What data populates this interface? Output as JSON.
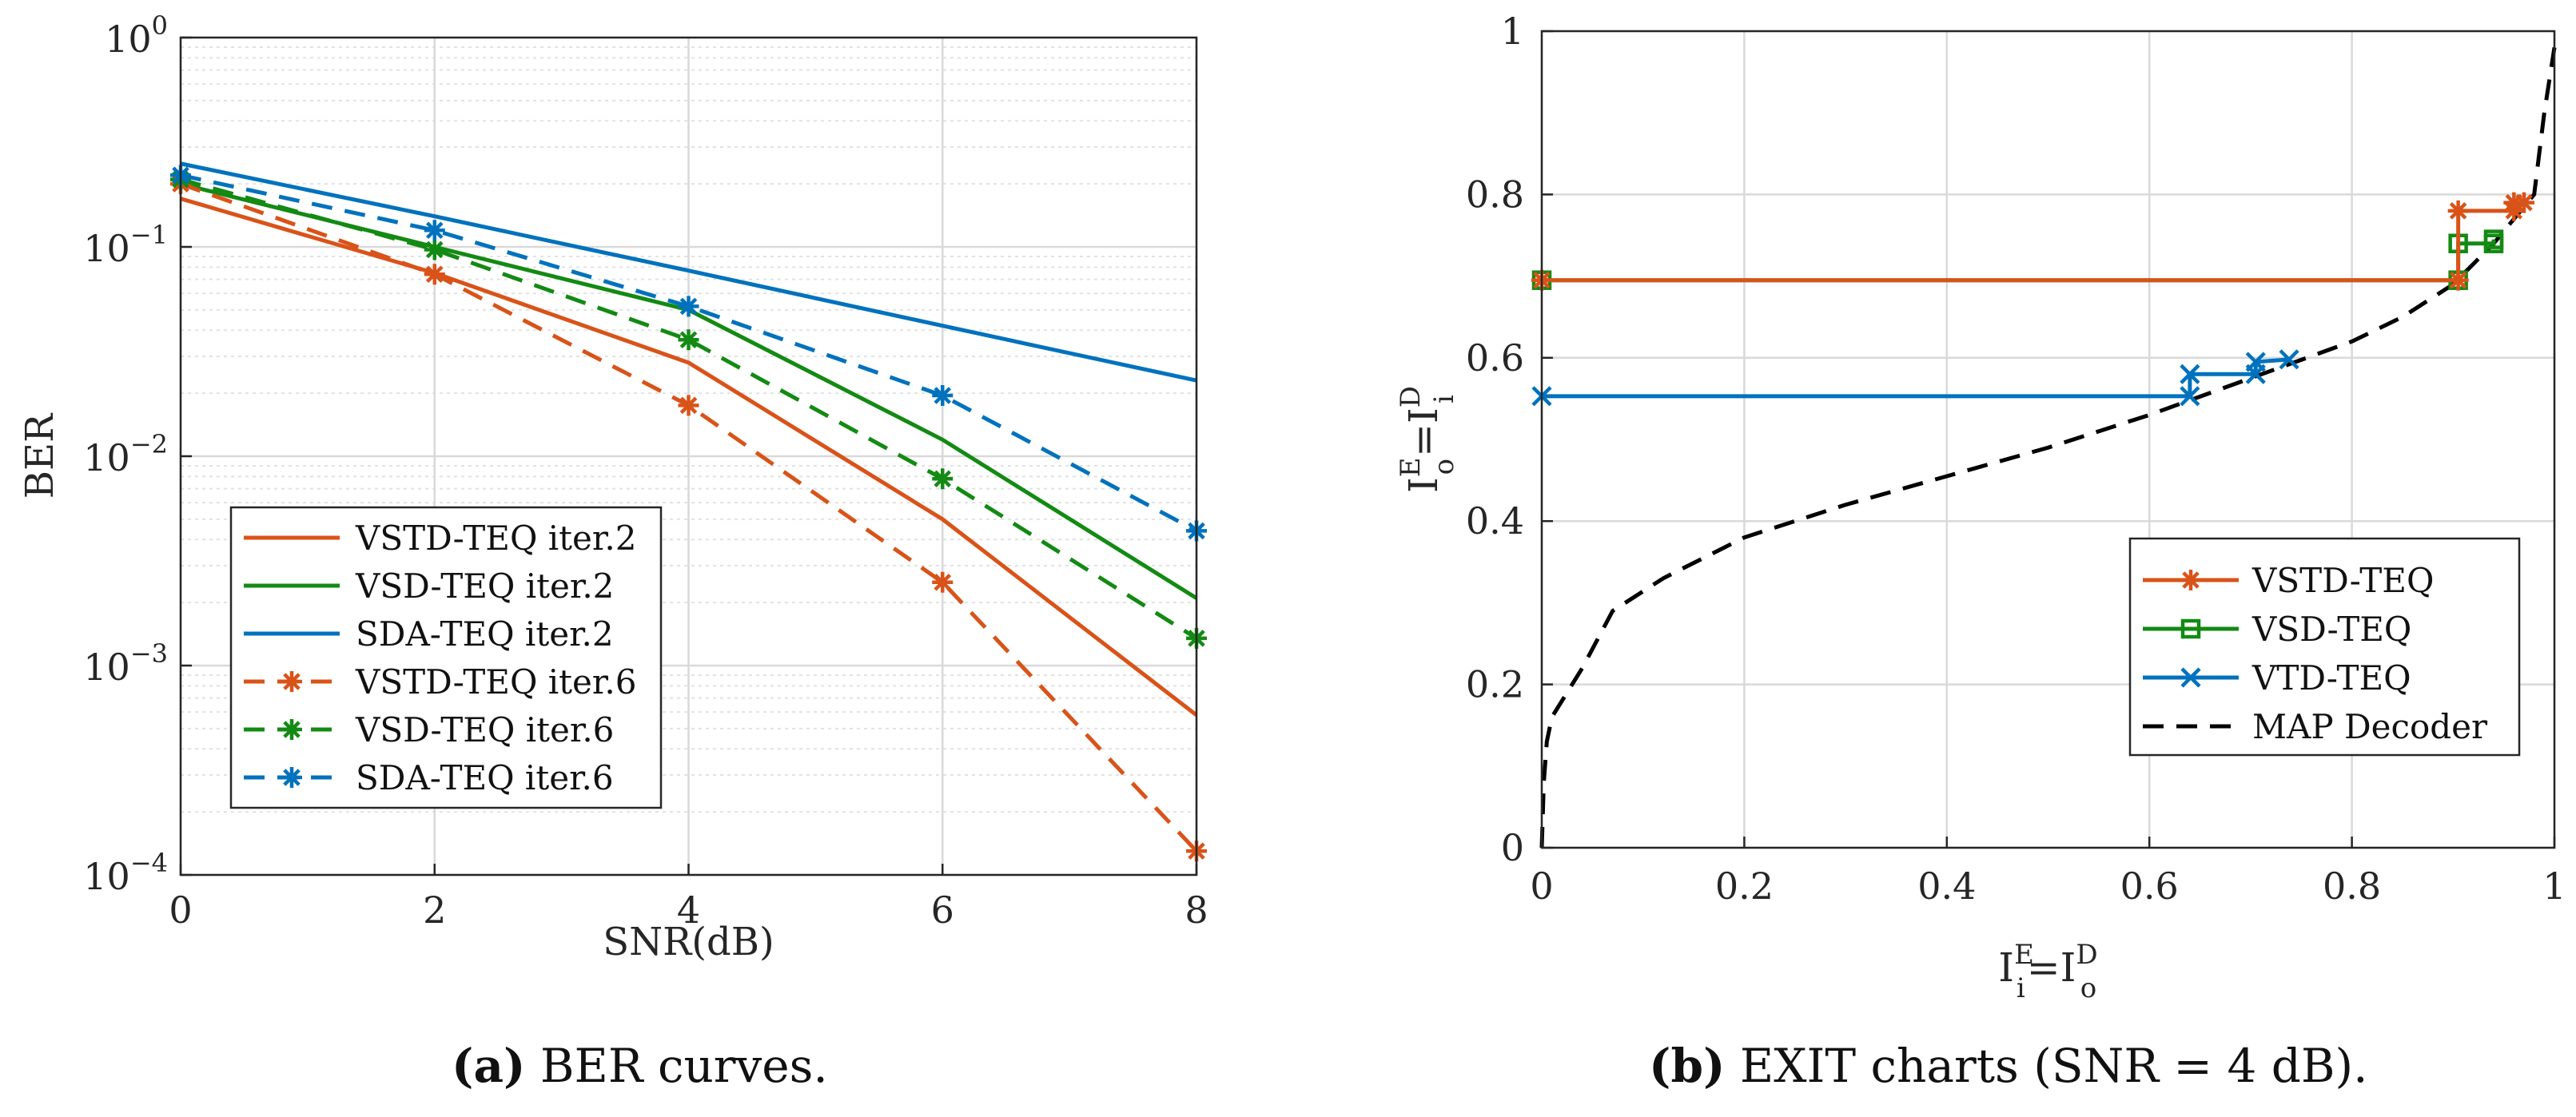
{
  "colors": {
    "orange": "#d95319",
    "green": "#138a13",
    "blue": "#0072bd",
    "black": "#000000",
    "grid": "#d9d9d9",
    "minorGrid": "#e2e2e2"
  },
  "captions": {
    "a_label": "(a)",
    "a_text": "BER curves.",
    "b_label": "(b)",
    "b_text": "EXIT charts (SNR = 4 dB)."
  },
  "chart_data": [
    {
      "id": "a",
      "type": "line",
      "title": "",
      "xlabel": "SNR(dB)",
      "ylabel": "BER",
      "yscale": "log",
      "xlim": [
        0,
        8
      ],
      "ylim": [
        0.0001,
        1
      ],
      "xticks": [
        0,
        2,
        4,
        6,
        8
      ],
      "xtick_labels": [
        "0",
        "2",
        "4",
        "6",
        "8"
      ],
      "ytick_labels": [
        {
          "base": "10",
          "exp": "0"
        },
        {
          "base": "10",
          "exp": "−1"
        },
        {
          "base": "10",
          "exp": "−2"
        },
        {
          "base": "10",
          "exp": "−3"
        },
        {
          "base": "10",
          "exp": "−4"
        }
      ],
      "grid": true,
      "legend_position": "bottom-left",
      "x": [
        0,
        2,
        4,
        6,
        8
      ],
      "series": [
        {
          "name": "VSTD-TEQ iter.2",
          "color": "#d95319",
          "dash": "solid",
          "marker": "none",
          "values": [
            0.17,
            0.075,
            0.028,
            0.005,
            0.00058
          ]
        },
        {
          "name": "VSD-TEQ iter.2",
          "color": "#138a13",
          "dash": "solid",
          "marker": "none",
          "values": [
            0.2,
            0.1,
            0.05,
            0.012,
            0.0021
          ]
        },
        {
          "name": "SDA-TEQ iter.2",
          "color": "#0072bd",
          "dash": "solid",
          "marker": "none",
          "values": [
            0.25,
            0.14,
            0.077,
            0.042,
            0.023
          ]
        },
        {
          "name": "VSTD-TEQ iter.6",
          "color": "#d95319",
          "dash": "dashed",
          "marker": "asterisk",
          "values": [
            0.2,
            0.074,
            0.0175,
            0.0025,
            0.00013
          ]
        },
        {
          "name": "VSD-TEQ iter.6",
          "color": "#138a13",
          "dash": "dashed",
          "marker": "asterisk",
          "values": [
            0.21,
            0.097,
            0.036,
            0.0078,
            0.00135
          ]
        },
        {
          "name": "SDA-TEQ iter.6",
          "color": "#0072bd",
          "dash": "dashed",
          "marker": "asterisk",
          "values": [
            0.22,
            0.12,
            0.052,
            0.0195,
            0.0044
          ]
        }
      ]
    },
    {
      "id": "b",
      "type": "line",
      "title": "",
      "xlabel": {
        "main": "I",
        "sub": "i",
        "sup": "E",
        "eq": "=I",
        "sub2": "o",
        "sup2": "D"
      },
      "ylabel": {
        "main": "I",
        "sub": "o",
        "sup": "E",
        "eq": "=I",
        "sub2": "i",
        "sup2": "D"
      },
      "xlim": [
        0,
        1
      ],
      "ylim": [
        0,
        1
      ],
      "xticks": [
        0,
        0.2,
        0.4,
        0.6,
        0.8,
        1
      ],
      "xtick_labels": [
        "0",
        "0.2",
        "0.4",
        "0.6",
        "0.8",
        "1"
      ],
      "yticks": [
        0,
        0.2,
        0.4,
        0.6,
        0.8,
        1
      ],
      "ytick_labels": [
        "0",
        "0.2",
        "0.4",
        "0.6",
        "0.8",
        "1"
      ],
      "grid": true,
      "legend_position": "bottom-right",
      "series": [
        {
          "name": "VSTD-TEQ",
          "color": "#d95319",
          "dash": "solid",
          "marker": "asterisk",
          "x": [
            0,
            0.905,
            0.905,
            0.96,
            0.96,
            0.97
          ],
          "y": [
            0.695,
            0.695,
            0.78,
            0.78,
            0.79,
            0.79
          ]
        },
        {
          "name": "VSD-TEQ",
          "color": "#138a13",
          "dash": "solid",
          "marker": "square",
          "x": [
            0,
            0.905,
            0.905,
            0.94,
            0.94
          ],
          "y": [
            0.695,
            0.695,
            0.74,
            0.74,
            0.745
          ]
        },
        {
          "name": "VTD-TEQ",
          "color": "#0072bd",
          "dash": "solid",
          "marker": "x",
          "x": [
            0,
            0.64,
            0.64,
            0.705,
            0.705,
            0.738
          ],
          "y": [
            0.553,
            0.553,
            0.58,
            0.58,
            0.595,
            0.598
          ]
        },
        {
          "name": "MAP Decoder",
          "color": "#000000",
          "dash": "dashed",
          "marker": "none",
          "x": [
            0,
            0.002,
            0.005,
            0.01,
            0.02,
            0.04,
            0.07,
            0.12,
            0.2,
            0.25,
            0.3,
            0.4,
            0.5,
            0.6,
            0.7,
            0.8,
            0.85,
            0.9,
            0.94,
            0.96,
            0.98,
            0.99,
            1.0
          ],
          "y": [
            0,
            0.08,
            0.13,
            0.16,
            0.18,
            0.22,
            0.29,
            0.33,
            0.38,
            0.4,
            0.42,
            0.455,
            0.49,
            0.53,
            0.575,
            0.62,
            0.65,
            0.69,
            0.74,
            0.77,
            0.8,
            0.9,
            0.98
          ]
        }
      ]
    }
  ]
}
